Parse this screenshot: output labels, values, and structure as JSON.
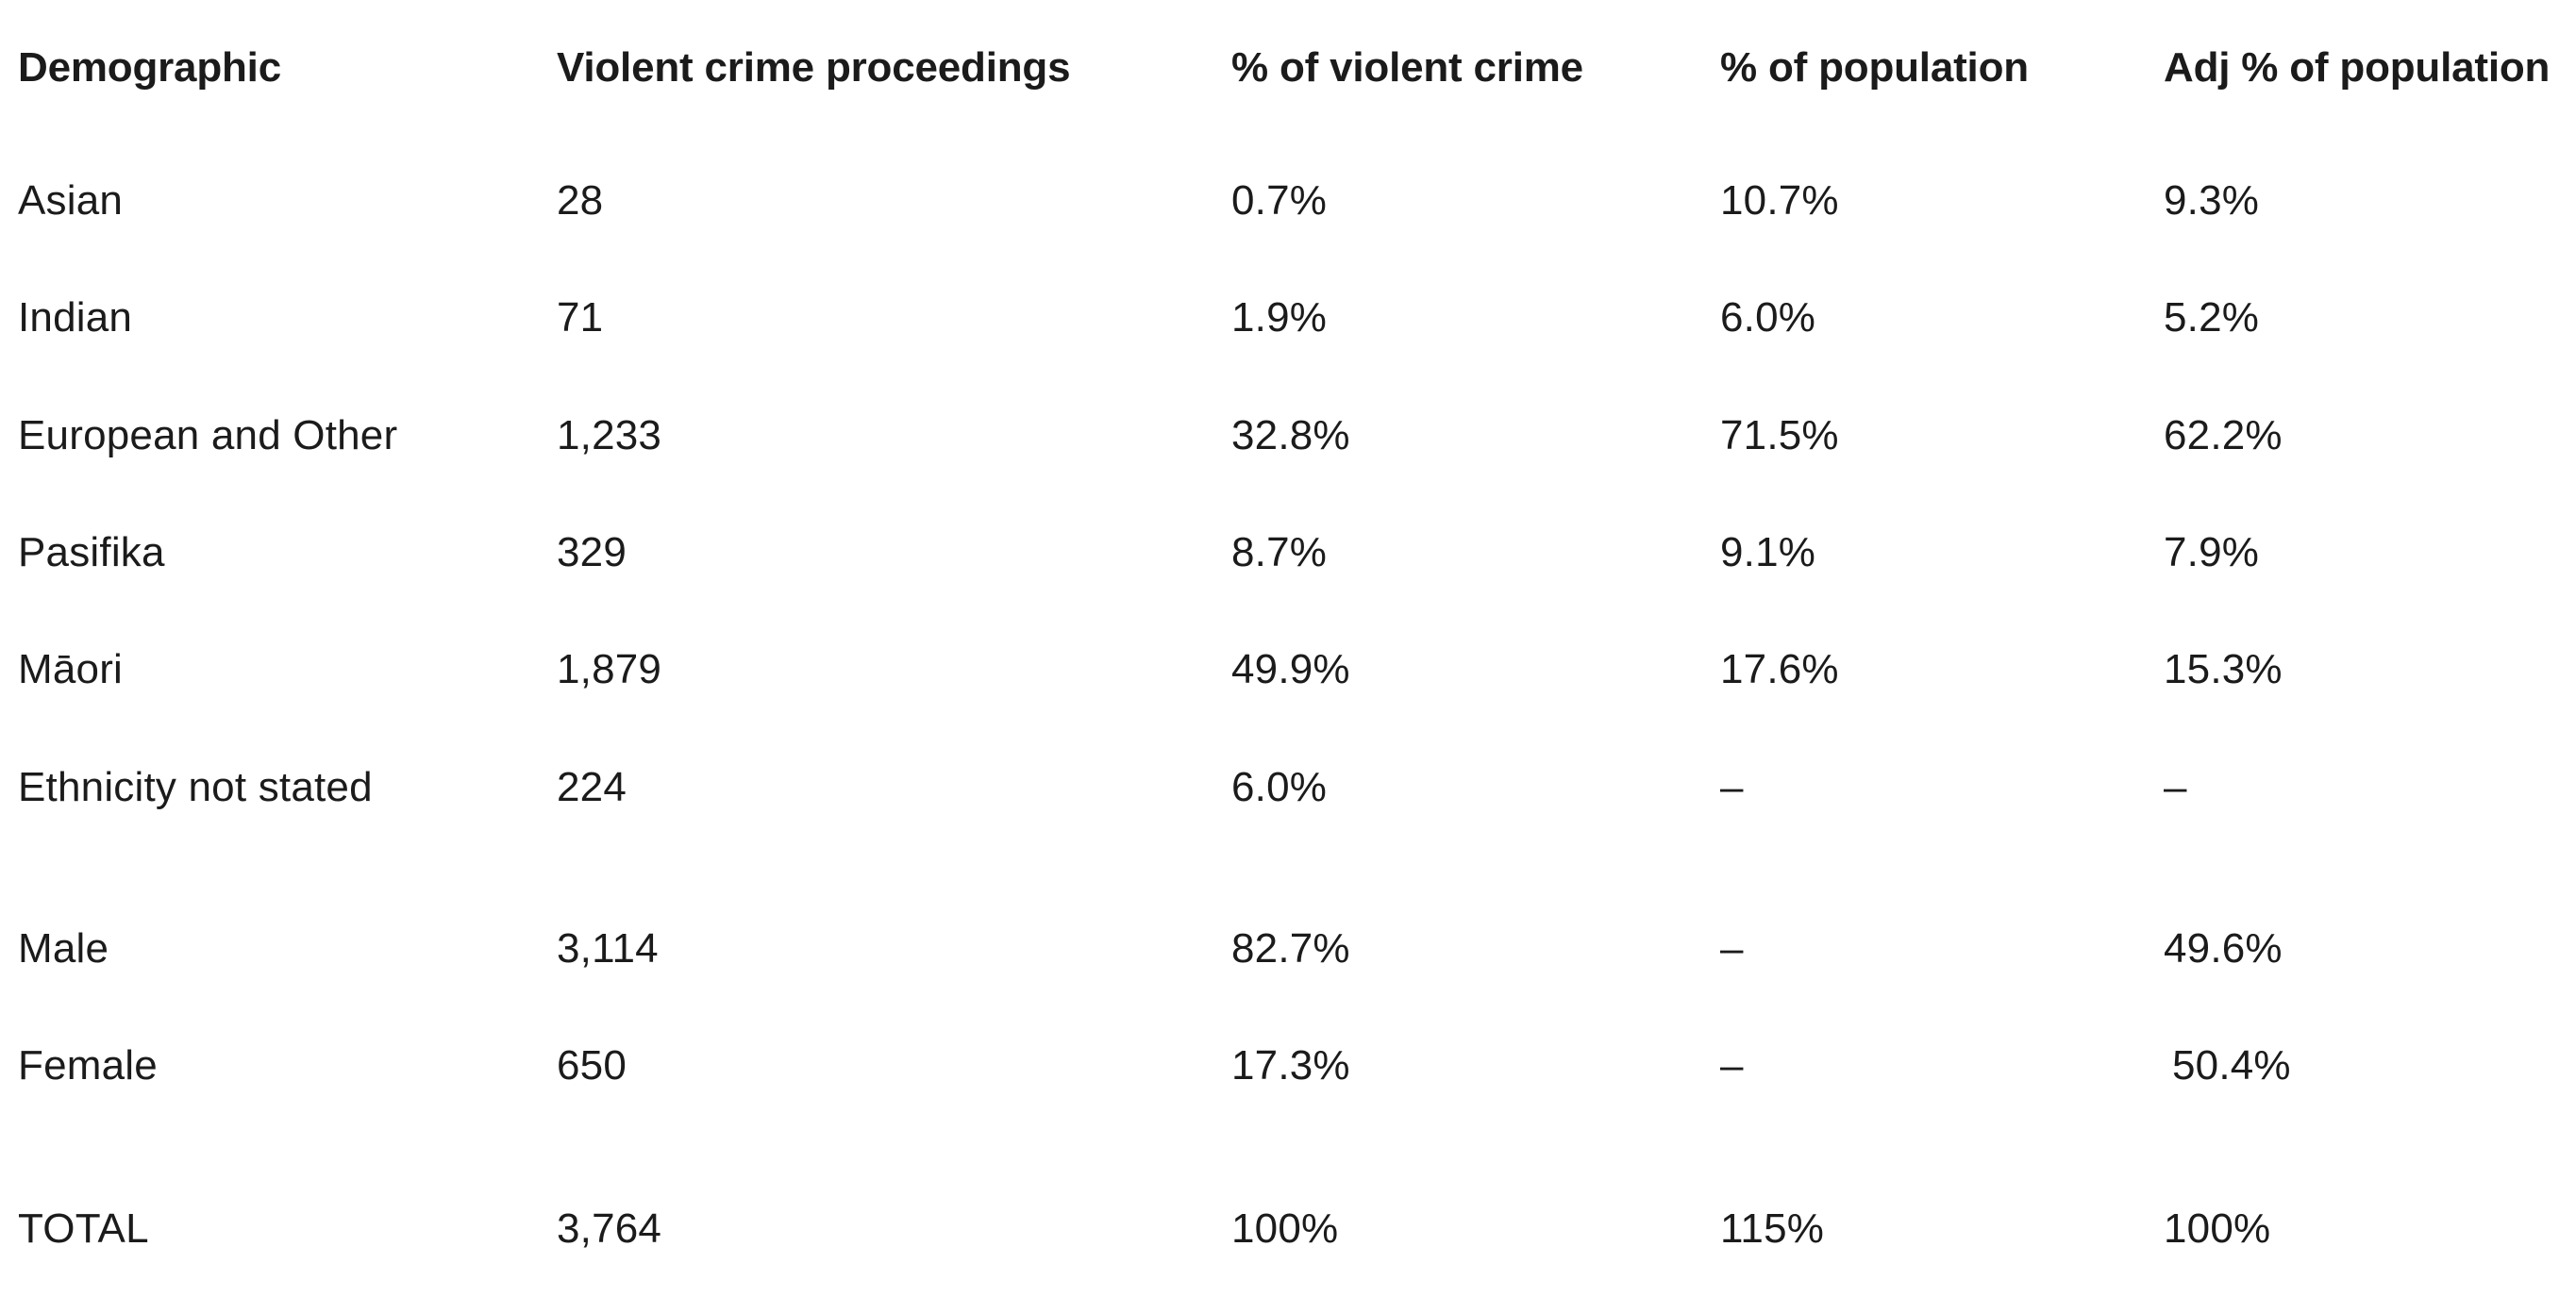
{
  "table": {
    "headers": {
      "demographic": "Demographic",
      "proceedings": "Violent crime proceedings",
      "pct_violent": "% of violent crime",
      "pct_population": "% of population",
      "adj_pct_population": "Adj % of population"
    },
    "rows": [
      {
        "demographic": "Asian",
        "proceedings": "28",
        "pct_violent": "0.7%",
        "pct_population": "10.7%",
        "adj_pct_population": "9.3%"
      },
      {
        "demographic": "Indian",
        "proceedings": "71",
        "pct_violent": "1.9%",
        "pct_population": "6.0%",
        "adj_pct_population": "5.2%"
      },
      {
        "demographic": "European and Other",
        "proceedings": "1,233",
        "pct_violent": "32.8%",
        "pct_population": "71.5%",
        "adj_pct_population": "62.2%"
      },
      {
        "demographic": "Pasifika",
        "proceedings": "329",
        "pct_violent": "8.7%",
        "pct_population": "9.1%",
        "adj_pct_population": "7.9%"
      },
      {
        "demographic": "Māori",
        "proceedings": "1,879",
        "pct_violent": "49.9%",
        "pct_population": "17.6%",
        "adj_pct_population": "15.3%"
      },
      {
        "demographic": "Ethnicity not stated",
        "proceedings": "224",
        "pct_violent": "6.0%",
        "pct_population": "–",
        "adj_pct_population": "–"
      },
      {
        "demographic": "Male",
        "proceedings": "3,114",
        "pct_violent": "82.7%",
        "pct_population": "–",
        "adj_pct_population": "49.6%"
      },
      {
        "demographic": "Female",
        "proceedings": "650",
        "pct_violent": "17.3%",
        "pct_population": "–",
        "adj_pct_population": "50.4%"
      },
      {
        "demographic": "TOTAL",
        "proceedings": "3,764",
        "pct_violent": "100%",
        "pct_population": "115%",
        "adj_pct_population": "100%"
      }
    ]
  }
}
